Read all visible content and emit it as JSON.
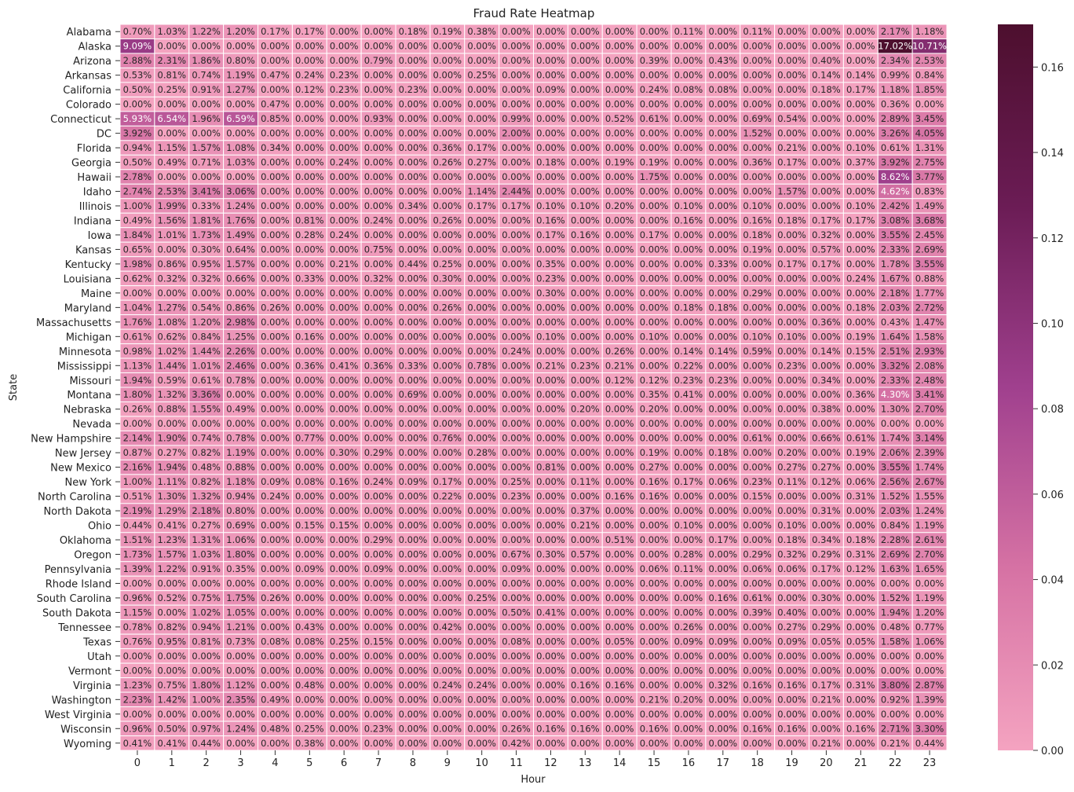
{
  "chart_data": {
    "type": "heatmap",
    "title": "Fraud Rate Heatmap",
    "xlabel": "Hour",
    "ylabel": "State",
    "hours": [
      "0",
      "1",
      "2",
      "3",
      "4",
      "5",
      "6",
      "7",
      "8",
      "9",
      "10",
      "11",
      "12",
      "13",
      "14",
      "15",
      "16",
      "17",
      "18",
      "19",
      "20",
      "21",
      "22",
      "23"
    ],
    "states": [
      "Alabama",
      "Alaska",
      "Arizona",
      "Arkansas",
      "California",
      "Colorado",
      "Connecticut",
      "DC",
      "Florida",
      "Georgia",
      "Hawaii",
      "Idaho",
      "Illinois",
      "Indiana",
      "Iowa",
      "Kansas",
      "Kentucky",
      "Louisiana",
      "Maine",
      "Maryland",
      "Massachusetts",
      "Michigan",
      "Minnesota",
      "Mississippi",
      "Missouri",
      "Montana",
      "Nebraska",
      "Nevada",
      "New Hampshire",
      "New Jersey",
      "New Mexico",
      "New York",
      "North Carolina",
      "North Dakota",
      "Ohio",
      "Oklahoma",
      "Oregon",
      "Pennsylvania",
      "Rhode Island",
      "South Carolina",
      "South Dakota",
      "Tennessee",
      "Texas",
      "Utah",
      "Vermont",
      "Virginia",
      "Washington",
      "West Virginia",
      "Wisconsin",
      "Wyoming"
    ],
    "values_percent": [
      [
        0.7,
        1.03,
        1.22,
        1.2,
        0.17,
        0.17,
        0.0,
        0.0,
        0.18,
        0.19,
        0.38,
        0.0,
        0.0,
        0.0,
        0.0,
        0.0,
        0.11,
        0.0,
        0.11,
        0.0,
        0.0,
        0.0,
        2.17,
        1.18
      ],
      [
        9.09,
        0.0,
        0.0,
        0.0,
        0.0,
        0.0,
        0.0,
        0.0,
        0.0,
        0.0,
        0.0,
        0.0,
        0.0,
        0.0,
        0.0,
        0.0,
        0.0,
        0.0,
        0.0,
        0.0,
        0.0,
        0.0,
        17.02,
        10.71
      ],
      [
        2.88,
        2.31,
        1.86,
        0.8,
        0.0,
        0.0,
        0.0,
        0.79,
        0.0,
        0.0,
        0.0,
        0.0,
        0.0,
        0.0,
        0.0,
        0.39,
        0.0,
        0.43,
        0.0,
        0.0,
        0.4,
        0.0,
        2.34,
        2.53
      ],
      [
        0.53,
        0.81,
        0.74,
        1.19,
        0.47,
        0.24,
        0.23,
        0.0,
        0.0,
        0.0,
        0.25,
        0.0,
        0.0,
        0.0,
        0.0,
        0.0,
        0.0,
        0.0,
        0.0,
        0.0,
        0.14,
        0.14,
        0.99,
        0.84
      ],
      [
        0.5,
        0.25,
        0.91,
        1.27,
        0.0,
        0.12,
        0.23,
        0.0,
        0.23,
        0.0,
        0.0,
        0.0,
        0.09,
        0.0,
        0.0,
        0.24,
        0.08,
        0.08,
        0.0,
        0.0,
        0.18,
        0.17,
        1.18,
        1.85
      ],
      [
        0.0,
        0.0,
        0.0,
        0.0,
        0.47,
        0.0,
        0.0,
        0.0,
        0.0,
        0.0,
        0.0,
        0.0,
        0.0,
        0.0,
        0.0,
        0.0,
        0.0,
        0.0,
        0.0,
        0.0,
        0.0,
        0.0,
        0.36,
        0.0
      ],
      [
        5.93,
        6.54,
        1.96,
        6.59,
        0.85,
        0.0,
        0.0,
        0.93,
        0.0,
        0.0,
        0.0,
        0.99,
        0.0,
        0.0,
        0.52,
        0.61,
        0.0,
        0.0,
        0.69,
        0.54,
        0.0,
        0.0,
        2.89,
        3.45
      ],
      [
        3.92,
        0.0,
        0.0,
        0.0,
        0.0,
        0.0,
        0.0,
        0.0,
        0.0,
        0.0,
        0.0,
        2.0,
        0.0,
        0.0,
        0.0,
        0.0,
        0.0,
        0.0,
        1.52,
        0.0,
        0.0,
        0.0,
        3.26,
        4.05
      ],
      [
        0.94,
        1.15,
        1.57,
        1.08,
        0.34,
        0.0,
        0.0,
        0.0,
        0.0,
        0.36,
        0.17,
        0.0,
        0.0,
        0.0,
        0.0,
        0.0,
        0.0,
        0.0,
        0.0,
        0.21,
        0.0,
        0.1,
        0.61,
        1.31
      ],
      [
        0.5,
        0.49,
        0.71,
        1.03,
        0.0,
        0.0,
        0.24,
        0.0,
        0.0,
        0.26,
        0.27,
        0.0,
        0.18,
        0.0,
        0.19,
        0.19,
        0.0,
        0.0,
        0.36,
        0.17,
        0.0,
        0.37,
        3.92,
        2.75
      ],
      [
        2.78,
        0.0,
        0.0,
        0.0,
        0.0,
        0.0,
        0.0,
        0.0,
        0.0,
        0.0,
        0.0,
        0.0,
        0.0,
        0.0,
        0.0,
        1.75,
        0.0,
        0.0,
        0.0,
        0.0,
        0.0,
        0.0,
        8.62,
        3.77
      ],
      [
        2.74,
        2.53,
        3.41,
        3.06,
        0.0,
        0.0,
        0.0,
        0.0,
        0.0,
        0.0,
        1.14,
        2.44,
        0.0,
        0.0,
        0.0,
        0.0,
        0.0,
        0.0,
        0.0,
        1.57,
        0.0,
        0.0,
        4.62,
        0.83
      ],
      [
        1.0,
        1.99,
        0.33,
        1.24,
        0.0,
        0.0,
        0.0,
        0.0,
        0.34,
        0.0,
        0.17,
        0.17,
        0.1,
        0.1,
        0.2,
        0.0,
        0.1,
        0.0,
        0.1,
        0.0,
        0.0,
        0.1,
        2.42,
        1.49
      ],
      [
        0.49,
        1.56,
        1.81,
        1.76,
        0.0,
        0.81,
        0.0,
        0.24,
        0.0,
        0.26,
        0.0,
        0.0,
        0.16,
        0.0,
        0.0,
        0.0,
        0.16,
        0.0,
        0.16,
        0.18,
        0.17,
        0.17,
        3.08,
        3.68
      ],
      [
        1.84,
        1.01,
        1.73,
        1.49,
        0.0,
        0.28,
        0.24,
        0.0,
        0.0,
        0.0,
        0.0,
        0.0,
        0.17,
        0.16,
        0.0,
        0.17,
        0.0,
        0.0,
        0.18,
        0.0,
        0.32,
        0.0,
        3.55,
        2.45
      ],
      [
        0.65,
        0.0,
        0.3,
        0.64,
        0.0,
        0.0,
        0.0,
        0.75,
        0.0,
        0.0,
        0.0,
        0.0,
        0.0,
        0.0,
        0.0,
        0.0,
        0.0,
        0.0,
        0.19,
        0.0,
        0.57,
        0.0,
        2.33,
        2.69
      ],
      [
        1.98,
        0.86,
        0.95,
        1.57,
        0.0,
        0.0,
        0.21,
        0.0,
        0.44,
        0.25,
        0.0,
        0.0,
        0.35,
        0.0,
        0.0,
        0.0,
        0.0,
        0.33,
        0.0,
        0.17,
        0.17,
        0.0,
        1.78,
        3.55
      ],
      [
        0.62,
        0.32,
        0.32,
        0.66,
        0.0,
        0.33,
        0.0,
        0.32,
        0.0,
        0.3,
        0.0,
        0.0,
        0.23,
        0.0,
        0.0,
        0.0,
        0.0,
        0.0,
        0.0,
        0.0,
        0.0,
        0.24,
        1.67,
        0.88
      ],
      [
        0.0,
        0.0,
        0.0,
        0.0,
        0.0,
        0.0,
        0.0,
        0.0,
        0.0,
        0.0,
        0.0,
        0.0,
        0.3,
        0.0,
        0.0,
        0.0,
        0.0,
        0.0,
        0.29,
        0.0,
        0.0,
        0.0,
        2.18,
        1.77
      ],
      [
        1.04,
        1.27,
        0.54,
        0.86,
        0.26,
        0.0,
        0.0,
        0.0,
        0.0,
        0.26,
        0.0,
        0.0,
        0.0,
        0.0,
        0.0,
        0.0,
        0.18,
        0.18,
        0.0,
        0.0,
        0.0,
        0.18,
        2.03,
        2.72
      ],
      [
        1.76,
        1.08,
        1.2,
        2.98,
        0.0,
        0.0,
        0.0,
        0.0,
        0.0,
        0.0,
        0.0,
        0.0,
        0.0,
        0.0,
        0.0,
        0.0,
        0.0,
        0.0,
        0.0,
        0.0,
        0.36,
        0.0,
        0.43,
        1.47
      ],
      [
        0.61,
        0.62,
        0.84,
        1.25,
        0.0,
        0.16,
        0.0,
        0.0,
        0.0,
        0.0,
        0.0,
        0.0,
        0.1,
        0.0,
        0.0,
        0.1,
        0.0,
        0.0,
        0.1,
        0.1,
        0.0,
        0.19,
        1.64,
        1.58
      ],
      [
        0.98,
        1.02,
        1.44,
        2.26,
        0.0,
        0.0,
        0.0,
        0.0,
        0.0,
        0.0,
        0.0,
        0.24,
        0.0,
        0.0,
        0.26,
        0.0,
        0.14,
        0.14,
        0.59,
        0.0,
        0.14,
        0.15,
        2.51,
        2.93
      ],
      [
        1.13,
        1.44,
        1.01,
        2.46,
        0.0,
        0.36,
        0.41,
        0.36,
        0.33,
        0.0,
        0.78,
        0.0,
        0.21,
        0.23,
        0.21,
        0.0,
        0.22,
        0.0,
        0.0,
        0.23,
        0.0,
        0.0,
        3.32,
        2.08
      ],
      [
        1.94,
        0.59,
        0.61,
        0.78,
        0.0,
        0.0,
        0.0,
        0.0,
        0.0,
        0.0,
        0.0,
        0.0,
        0.0,
        0.0,
        0.12,
        0.12,
        0.23,
        0.23,
        0.0,
        0.0,
        0.34,
        0.0,
        2.33,
        2.48
      ],
      [
        1.8,
        1.32,
        3.36,
        0.0,
        0.0,
        0.0,
        0.0,
        0.0,
        0.69,
        0.0,
        0.0,
        0.0,
        0.0,
        0.0,
        0.0,
        0.35,
        0.41,
        0.0,
        0.0,
        0.0,
        0.0,
        0.36,
        4.3,
        3.41
      ],
      [
        0.26,
        0.88,
        1.55,
        0.49,
        0.0,
        0.0,
        0.0,
        0.0,
        0.0,
        0.0,
        0.0,
        0.0,
        0.0,
        0.2,
        0.0,
        0.2,
        0.0,
        0.0,
        0.0,
        0.0,
        0.38,
        0.0,
        1.3,
        2.7
      ],
      [
        0.0,
        0.0,
        0.0,
        0.0,
        0.0,
        0.0,
        0.0,
        0.0,
        0.0,
        0.0,
        0.0,
        0.0,
        0.0,
        0.0,
        0.0,
        0.0,
        0.0,
        0.0,
        0.0,
        0.0,
        0.0,
        0.0,
        0.0,
        0.0
      ],
      [
        2.14,
        1.9,
        0.74,
        0.78,
        0.0,
        0.77,
        0.0,
        0.0,
        0.0,
        0.76,
        0.0,
        0.0,
        0.0,
        0.0,
        0.0,
        0.0,
        0.0,
        0.0,
        0.61,
        0.0,
        0.66,
        0.61,
        1.74,
        3.14
      ],
      [
        0.87,
        0.27,
        0.82,
        1.19,
        0.0,
        0.0,
        0.3,
        0.29,
        0.0,
        0.0,
        0.28,
        0.0,
        0.0,
        0.0,
        0.0,
        0.19,
        0.0,
        0.18,
        0.0,
        0.2,
        0.0,
        0.19,
        2.06,
        2.39
      ],
      [
        2.16,
        1.94,
        0.48,
        0.88,
        0.0,
        0.0,
        0.0,
        0.0,
        0.0,
        0.0,
        0.0,
        0.0,
        0.81,
        0.0,
        0.0,
        0.27,
        0.0,
        0.0,
        0.0,
        0.27,
        0.27,
        0.0,
        3.55,
        1.74
      ],
      [
        1.0,
        1.11,
        0.82,
        1.18,
        0.09,
        0.08,
        0.16,
        0.24,
        0.09,
        0.17,
        0.0,
        0.25,
        0.0,
        0.11,
        0.0,
        0.16,
        0.17,
        0.06,
        0.23,
        0.11,
        0.12,
        0.06,
        2.56,
        2.67
      ],
      [
        0.51,
        1.3,
        1.32,
        0.94,
        0.24,
        0.0,
        0.0,
        0.0,
        0.0,
        0.22,
        0.0,
        0.23,
        0.0,
        0.0,
        0.16,
        0.16,
        0.0,
        0.0,
        0.15,
        0.0,
        0.0,
        0.31,
        1.52,
        1.55
      ],
      [
        2.19,
        1.29,
        2.18,
        0.8,
        0.0,
        0.0,
        0.0,
        0.0,
        0.0,
        0.0,
        0.0,
        0.0,
        0.0,
        0.37,
        0.0,
        0.0,
        0.0,
        0.0,
        0.0,
        0.0,
        0.31,
        0.0,
        2.03,
        1.24
      ],
      [
        0.44,
        0.41,
        0.27,
        0.69,
        0.0,
        0.15,
        0.15,
        0.0,
        0.0,
        0.0,
        0.0,
        0.0,
        0.0,
        0.21,
        0.0,
        0.0,
        0.1,
        0.0,
        0.0,
        0.1,
        0.0,
        0.0,
        0.84,
        1.19
      ],
      [
        1.51,
        1.23,
        1.31,
        1.06,
        0.0,
        0.0,
        0.0,
        0.29,
        0.0,
        0.0,
        0.0,
        0.0,
        0.0,
        0.0,
        0.51,
        0.0,
        0.0,
        0.17,
        0.0,
        0.18,
        0.34,
        0.18,
        2.28,
        2.61
      ],
      [
        1.73,
        1.57,
        1.03,
        1.8,
        0.0,
        0.0,
        0.0,
        0.0,
        0.0,
        0.0,
        0.0,
        0.67,
        0.3,
        0.57,
        0.0,
        0.0,
        0.28,
        0.0,
        0.29,
        0.32,
        0.29,
        0.31,
        2.69,
        2.7
      ],
      [
        1.39,
        1.22,
        0.91,
        0.35,
        0.0,
        0.09,
        0.0,
        0.09,
        0.0,
        0.0,
        0.0,
        0.09,
        0.0,
        0.0,
        0.0,
        0.06,
        0.11,
        0.0,
        0.06,
        0.06,
        0.17,
        0.12,
        1.63,
        1.65
      ],
      [
        0.0,
        0.0,
        0.0,
        0.0,
        0.0,
        0.0,
        0.0,
        0.0,
        0.0,
        0.0,
        0.0,
        0.0,
        0.0,
        0.0,
        0.0,
        0.0,
        0.0,
        0.0,
        0.0,
        0.0,
        0.0,
        0.0,
        0.0,
        0.0
      ],
      [
        0.96,
        0.52,
        0.75,
        1.75,
        0.26,
        0.0,
        0.0,
        0.0,
        0.0,
        0.0,
        0.25,
        0.0,
        0.0,
        0.0,
        0.0,
        0.0,
        0.0,
        0.16,
        0.61,
        0.0,
        0.3,
        0.0,
        1.52,
        1.19
      ],
      [
        1.15,
        0.0,
        1.02,
        1.05,
        0.0,
        0.0,
        0.0,
        0.0,
        0.0,
        0.0,
        0.0,
        0.5,
        0.41,
        0.0,
        0.0,
        0.0,
        0.0,
        0.0,
        0.39,
        0.4,
        0.0,
        0.0,
        1.94,
        1.2
      ],
      [
        0.78,
        0.82,
        0.94,
        1.21,
        0.0,
        0.43,
        0.0,
        0.0,
        0.0,
        0.42,
        0.0,
        0.0,
        0.0,
        0.0,
        0.0,
        0.0,
        0.26,
        0.0,
        0.0,
        0.27,
        0.29,
        0.0,
        0.48,
        0.77
      ],
      [
        0.76,
        0.95,
        0.81,
        0.73,
        0.08,
        0.08,
        0.25,
        0.15,
        0.0,
        0.0,
        0.0,
        0.08,
        0.0,
        0.0,
        0.05,
        0.0,
        0.09,
        0.09,
        0.0,
        0.09,
        0.05,
        0.05,
        1.58,
        1.06
      ],
      [
        0.0,
        0.0,
        0.0,
        0.0,
        0.0,
        0.0,
        0.0,
        0.0,
        0.0,
        0.0,
        0.0,
        0.0,
        0.0,
        0.0,
        0.0,
        0.0,
        0.0,
        0.0,
        0.0,
        0.0,
        0.0,
        0.0,
        0.0,
        0.0
      ],
      [
        0.0,
        0.0,
        0.0,
        0.0,
        0.0,
        0.0,
        0.0,
        0.0,
        0.0,
        0.0,
        0.0,
        0.0,
        0.0,
        0.0,
        0.0,
        0.0,
        0.0,
        0.0,
        0.0,
        0.0,
        0.0,
        0.0,
        0.0,
        0.0
      ],
      [
        1.23,
        0.75,
        1.8,
        1.12,
        0.0,
        0.48,
        0.0,
        0.0,
        0.0,
        0.24,
        0.24,
        0.0,
        0.0,
        0.16,
        0.16,
        0.0,
        0.0,
        0.32,
        0.16,
        0.16,
        0.17,
        0.31,
        3.8,
        2.87
      ],
      [
        2.23,
        1.42,
        1.0,
        2.35,
        0.49,
        0.0,
        0.0,
        0.0,
        0.0,
        0.0,
        0.0,
        0.0,
        0.0,
        0.0,
        0.0,
        0.21,
        0.2,
        0.0,
        0.0,
        0.0,
        0.21,
        0.0,
        0.92,
        1.39
      ],
      [
        0.0,
        0.0,
        0.0,
        0.0,
        0.0,
        0.0,
        0.0,
        0.0,
        0.0,
        0.0,
        0.0,
        0.0,
        0.0,
        0.0,
        0.0,
        0.0,
        0.0,
        0.0,
        0.0,
        0.0,
        0.0,
        0.0,
        0.0,
        0.0
      ],
      [
        0.96,
        0.5,
        0.97,
        1.24,
        0.48,
        0.25,
        0.0,
        0.23,
        0.0,
        0.0,
        0.0,
        0.26,
        0.16,
        0.16,
        0.0,
        0.16,
        0.0,
        0.0,
        0.16,
        0.16,
        0.0,
        0.16,
        2.71,
        3.3
      ],
      [
        0.41,
        0.41,
        0.44,
        0.0,
        0.0,
        0.38,
        0.0,
        0.0,
        0.0,
        0.0,
        0.0,
        0.42,
        0.0,
        0.0,
        0.0,
        0.0,
        0.0,
        0.0,
        0.0,
        0.0,
        0.21,
        0.0,
        0.21,
        0.44
      ]
    ],
    "colorbar": {
      "range": [
        0,
        0.17
      ],
      "ticks": [
        "0.00",
        "0.02",
        "0.04",
        "0.06",
        "0.08",
        "0.10",
        "0.12",
        "0.14",
        "0.16"
      ],
      "colors": [
        "#f4a3c0",
        "#d672a4",
        "#a0408e",
        "#6b1c55",
        "#4d0f2e"
      ]
    }
  }
}
